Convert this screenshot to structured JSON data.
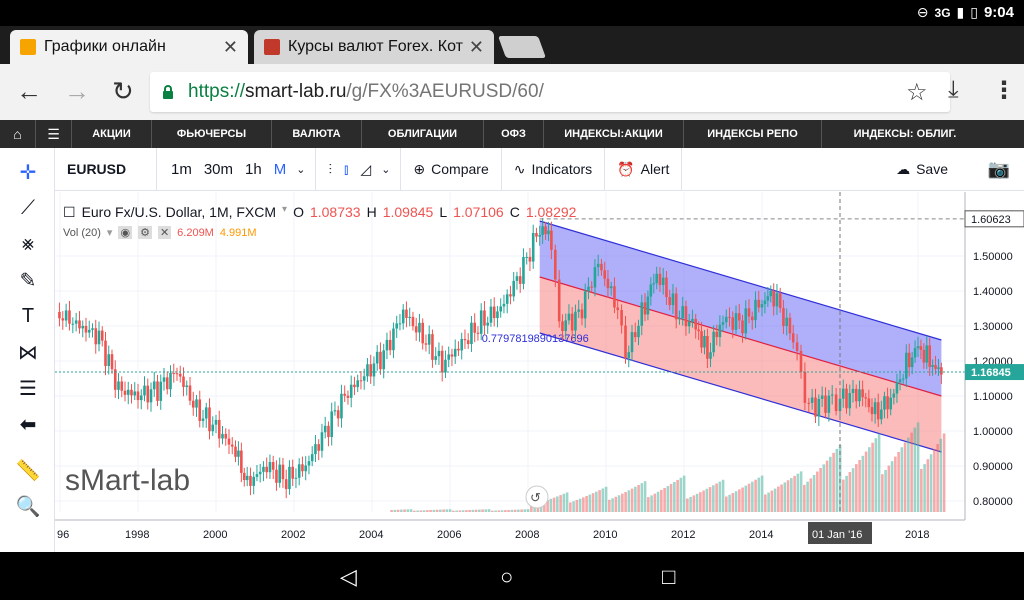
{
  "status": {
    "network": "3G",
    "time": "9:04"
  },
  "tabs": [
    {
      "title": "Графики онлайн",
      "fav_color": "#f7a400"
    },
    {
      "title": "Курсы валют Forex. Кот",
      "fav_color": "#c0392b"
    }
  ],
  "address": {
    "scheme": "https://",
    "host": "smart-lab.ru",
    "path": "/g/FX%3AEURUSD/60/"
  },
  "site_nav": [
    "АКЦИИ",
    "ФЬЮЧЕРСЫ",
    "ВАЛЮТА",
    "ОБЛИГАЦИИ",
    "ОФЗ",
    "ИНДЕКСЫ:АКЦИИ",
    "ИНДЕКСЫ РЕПО",
    "ИНДЕКСЫ: ОБЛИГ."
  ],
  "tv_toolbar": {
    "symbol": "EURUSD",
    "intervals": [
      "1m",
      "30m",
      "1h",
      "M"
    ],
    "selected_interval": "M",
    "compare": "Compare",
    "indicators": "Indicators",
    "alert": "Alert",
    "save": "Save"
  },
  "legend": {
    "title": "Euro Fx/U.S. Dollar, 1M, FXCM",
    "o_label": "O",
    "o_value": "1.08733",
    "h_label": "H",
    "h_value": "1.09845",
    "l_label": "L",
    "l_value": "1.07106",
    "c_label": "C",
    "c_value": "1.08292",
    "vol_label": "Vol (20)",
    "vol_value1": "6.209M",
    "vol_value2": "4.991M"
  },
  "watermark": "sMart-lab",
  "chart_data": {
    "type": "candlestick",
    "xlabels": [
      "96",
      "1998",
      "2000",
      "2002",
      "2004",
      "2006",
      "2008",
      "2010",
      "2012",
      "2014",
      "2018"
    ],
    "ylabels": [
      "1.50000",
      "1.40000",
      "1.30000",
      "1.20000",
      "1.10000",
      "1.00000",
      "0.90000",
      "0.80000"
    ],
    "ylim": [
      0.75,
      1.64
    ],
    "price_marker_high": "1.60623",
    "price_marker_last": "1.16845",
    "crosshair_date": "01 Jan '16",
    "channel_label": "0.779781989013769​6",
    "approx_close_path": [
      [
        1995.9,
        1.34
      ],
      [
        1996.5,
        1.3
      ],
      [
        1997.0,
        1.27
      ],
      [
        1997.5,
        1.12
      ],
      [
        1998.0,
        1.1
      ],
      [
        1998.5,
        1.12
      ],
      [
        1999.0,
        1.17
      ],
      [
        1999.5,
        1.06
      ],
      [
        2000.0,
        1.01
      ],
      [
        2000.5,
        0.94
      ],
      [
        2000.8,
        0.85
      ],
      [
        2001.3,
        0.9
      ],
      [
        2001.8,
        0.86
      ],
      [
        2002.3,
        0.9
      ],
      [
        2002.8,
        1.0
      ],
      [
        2003.3,
        1.1
      ],
      [
        2003.8,
        1.16
      ],
      [
        2004.3,
        1.22
      ],
      [
        2004.8,
        1.34
      ],
      [
        2005.3,
        1.27
      ],
      [
        2005.8,
        1.19
      ],
      [
        2006.3,
        1.25
      ],
      [
        2006.8,
        1.31
      ],
      [
        2007.3,
        1.35
      ],
      [
        2007.8,
        1.45
      ],
      [
        2008.3,
        1.58
      ],
      [
        2008.6,
        1.55
      ],
      [
        2008.8,
        1.3
      ],
      [
        2009.3,
        1.33
      ],
      [
        2009.8,
        1.48
      ],
      [
        2010.3,
        1.35
      ],
      [
        2010.5,
        1.21
      ],
      [
        2011.0,
        1.36
      ],
      [
        2011.3,
        1.45
      ],
      [
        2011.8,
        1.34
      ],
      [
        2012.3,
        1.3
      ],
      [
        2012.6,
        1.22
      ],
      [
        2013.0,
        1.32
      ],
      [
        2013.5,
        1.31
      ],
      [
        2014.0,
        1.37
      ],
      [
        2014.3,
        1.39
      ],
      [
        2014.8,
        1.26
      ],
      [
        2015.0,
        1.16
      ],
      [
        2015.2,
        1.07
      ],
      [
        2015.8,
        1.09
      ],
      [
        2016.0,
        1.09
      ],
      [
        2016.5,
        1.11
      ],
      [
        2016.9,
        1.05
      ],
      [
        2017.3,
        1.09
      ],
      [
        2017.7,
        1.19
      ],
      [
        2018.0,
        1.24
      ],
      [
        2018.3,
        1.2
      ],
      [
        2018.6,
        1.16
      ]
    ]
  }
}
